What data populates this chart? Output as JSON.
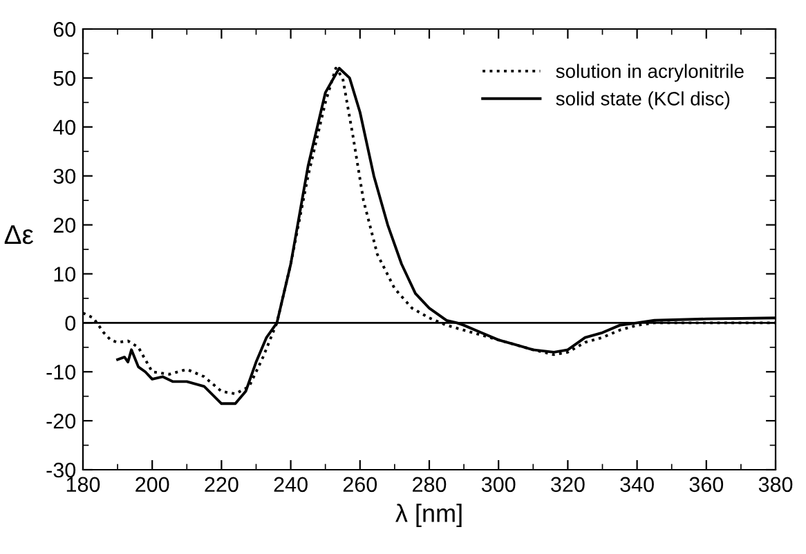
{
  "chart_data": {
    "type": "line",
    "xlabel": "λ [nm]",
    "ylabel": "Δε",
    "xlim": [
      180,
      380
    ],
    "xticks": [
      180,
      200,
      220,
      240,
      260,
      280,
      300,
      320,
      340,
      360,
      380
    ],
    "ylim": [
      -30,
      60
    ],
    "yticks": [
      -30,
      -20,
      -10,
      0,
      10,
      20,
      30,
      40,
      50,
      60
    ],
    "grid": false,
    "legend": "top right",
    "ref_lines": [
      {
        "axis": "y",
        "value": 0,
        "color": "#000000",
        "line_style": "solid"
      }
    ],
    "series": [
      {
        "name": "solution in acrylonitrile",
        "color": "#000000",
        "line_style": "dotted",
        "x": [
          180,
          183,
          186,
          188,
          190,
          193,
          196,
          200,
          205,
          210,
          215,
          220,
          224,
          228,
          232,
          236,
          240,
          245,
          250,
          253,
          255,
          258,
          261,
          265,
          270,
          275,
          280,
          285,
          290,
          295,
          300,
          305,
          310,
          316,
          320,
          325,
          330,
          335,
          340,
          345,
          350,
          360,
          380
        ],
        "values": [
          2,
          1,
          -2,
          -3.5,
          -4,
          -3.7,
          -5,
          -10,
          -10.5,
          -9.5,
          -11,
          -14,
          -14.5,
          -13,
          -7,
          0,
          12,
          30,
          45,
          52,
          50,
          38,
          25,
          14,
          7,
          3,
          1,
          -0.5,
          -1.5,
          -2.5,
          -3.5,
          -4.5,
          -5.5,
          -6.5,
          -6,
          -4,
          -3,
          -1.5,
          -0.5,
          0,
          0,
          0,
          0
        ]
      },
      {
        "name": "solid state (KCl disc)",
        "color": "#000000",
        "line_style": "solid",
        "x": [
          190,
          192,
          193,
          194,
          196,
          198,
          200,
          203,
          206,
          210,
          215,
          220,
          224,
          227,
          230,
          233,
          236,
          240,
          245,
          250,
          254,
          257,
          260,
          264,
          268,
          272,
          276,
          280,
          285,
          288,
          290,
          295,
          300,
          305,
          310,
          316,
          320,
          325,
          330,
          335,
          340,
          345,
          360,
          380
        ],
        "values": [
          -7.5,
          -7,
          -8,
          -5.5,
          -9,
          -10,
          -11.5,
          -11,
          -12,
          -12,
          -13,
          -16.5,
          -16.5,
          -14,
          -8,
          -3,
          0,
          12,
          32,
          47,
          52,
          50,
          43,
          30,
          20,
          12,
          6,
          3,
          0.5,
          0,
          -0.5,
          -2,
          -3.5,
          -4.5,
          -5.5,
          -6,
          -5.5,
          -3,
          -2,
          -0.5,
          0,
          0.5,
          0.8,
          1
        ]
      }
    ]
  }
}
